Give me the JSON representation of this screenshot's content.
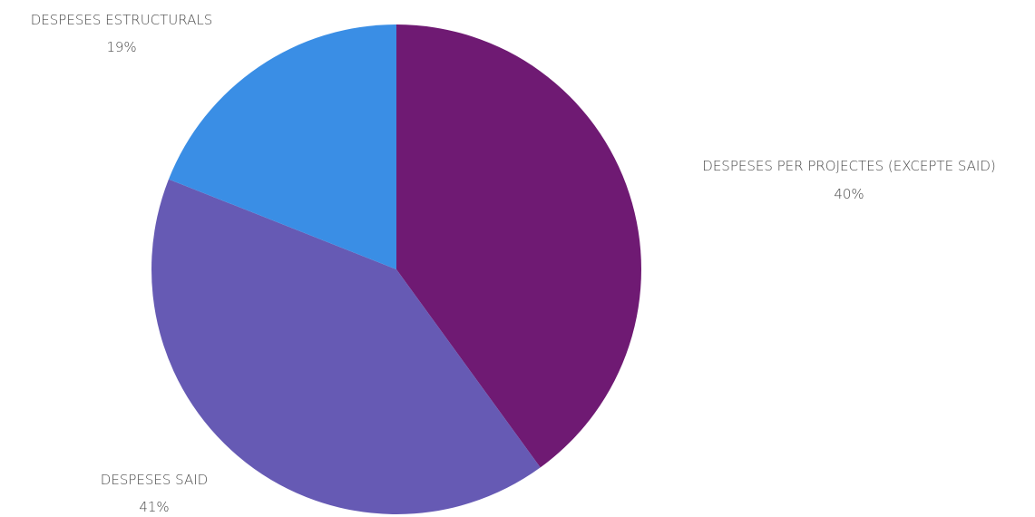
{
  "chart_data": {
    "type": "pie",
    "title": "",
    "slices": [
      {
        "label": "DESPESES PER PROJECTES (EXCEPTE SAID)",
        "value": 40,
        "value_label": "40%",
        "color": "#6f1a73"
      },
      {
        "label": "DESPESES SAID",
        "value": 41,
        "value_label": "41%",
        "color": "#665ab4"
      },
      {
        "label": "DESPESES ESTRUCTURALS",
        "value": 19,
        "value_label": "19%",
        "color": "#3a8ee5"
      }
    ],
    "start_position": "top",
    "direction": "clockwise",
    "legend": "none",
    "data_labels": "outside"
  }
}
